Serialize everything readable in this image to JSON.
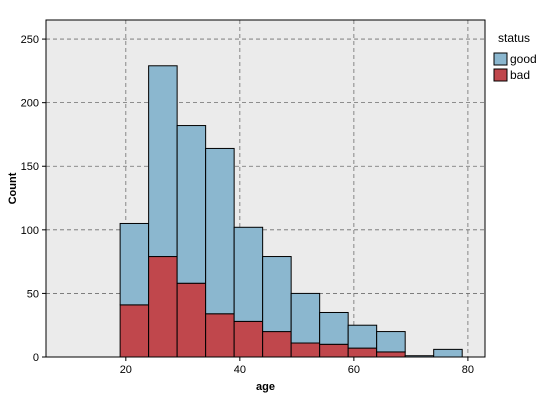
{
  "chart_data": {
    "type": "bar",
    "stacked": true,
    "xlabel": "age",
    "ylabel": "Count",
    "xlim": [
      6,
      83
    ],
    "ylim": [
      0,
      265
    ],
    "x_ticks": [
      20,
      40,
      60,
      80
    ],
    "y_ticks": [
      0,
      50,
      100,
      150,
      200,
      250
    ],
    "grid": true,
    "legend_title": "status",
    "legend_position": "top-right",
    "bins": [
      {
        "x0": 19,
        "x1": 24
      },
      {
        "x0": 24,
        "x1": 29
      },
      {
        "x0": 29,
        "x1": 34
      },
      {
        "x0": 34,
        "x1": 39
      },
      {
        "x0": 39,
        "x1": 44
      },
      {
        "x0": 44,
        "x1": 49
      },
      {
        "x0": 49,
        "x1": 54
      },
      {
        "x0": 54,
        "x1": 59
      },
      {
        "x0": 59,
        "x1": 64
      },
      {
        "x0": 64,
        "x1": 69
      },
      {
        "x0": 69,
        "x1": 74
      },
      {
        "x0": 74,
        "x1": 79
      }
    ],
    "series": [
      {
        "name": "bad",
        "color": "#c0474c",
        "values": [
          41,
          79,
          58,
          34,
          28,
          20,
          11,
          10,
          7,
          4,
          0,
          0
        ]
      },
      {
        "name": "good",
        "color": "#8bb7cf",
        "values": [
          64,
          150,
          124,
          130,
          74,
          59,
          39,
          25,
          18,
          16,
          1,
          6
        ]
      }
    ],
    "legend_order": [
      "good",
      "bad"
    ],
    "colors": {
      "plot_background": "#ebebeb",
      "grid": "#6e6e6e"
    }
  }
}
